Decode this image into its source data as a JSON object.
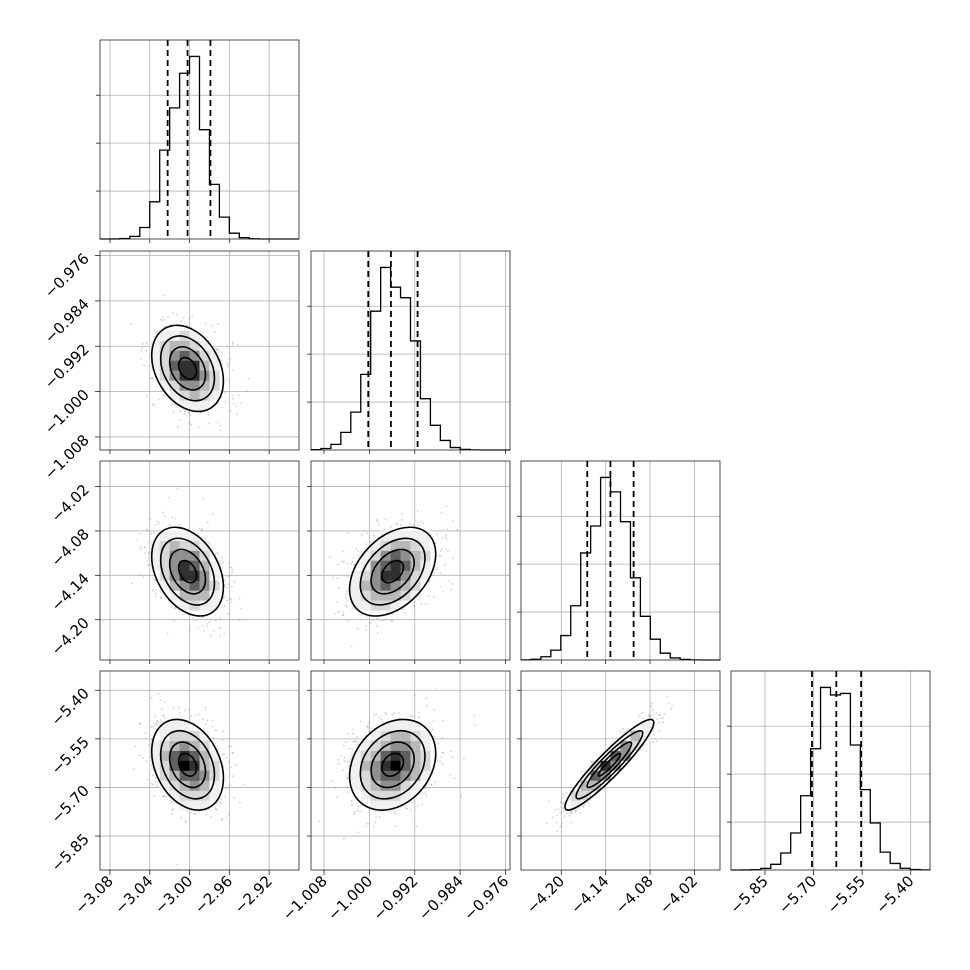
{
  "chart_data": {
    "type": "corner",
    "grid": true,
    "parameters": [
      {
        "index": 0,
        "range": [
          -3.09,
          -2.89
        ],
        "ticks": [
          "−3.08",
          "−3.04",
          "−3.00",
          "−2.96",
          "−2.92"
        ],
        "tick_values": [
          -3.08,
          -3.04,
          -3.0,
          -2.96,
          -2.92
        ],
        "mean": -3.002,
        "std": 0.018,
        "quantiles": [
          -3.022,
          -3.002,
          -2.979
        ]
      },
      {
        "index": 1,
        "range": [
          -1.0103,
          -0.9752
        ],
        "ticks": [
          "−1.008",
          "−1.000",
          "−0.992",
          "−0.984",
          "−0.976"
        ],
        "tick_values": [
          -1.008,
          -1.0,
          -0.992,
          -0.984,
          -0.976
        ],
        "mean": -0.9959,
        "std": 0.0038,
        "quantiles": [
          -1.0002,
          -0.9962,
          -0.9915
        ]
      },
      {
        "index": 2,
        "range": [
          -4.2545,
          -3.9854
        ],
        "ticks": [
          "−4.20",
          "−4.14",
          "−4.08",
          "−4.02"
        ],
        "tick_values": [
          -4.2,
          -4.14,
          -4.08,
          -4.02
        ],
        "mean": -4.135,
        "std": 0.03,
        "quantiles": [
          -4.1649,
          -4.1336,
          -4.1022
        ]
      },
      {
        "index": 3,
        "range": [
          -5.9548,
          -5.3405
        ],
        "ticks": [
          "−5.85",
          "−5.70",
          "−5.55",
          "−5.40"
        ],
        "tick_values": [
          -5.85,
          -5.7,
          -5.55,
          -5.4
        ],
        "mean": -5.63,
        "std": 0.07,
        "quantiles": [
          -5.7048,
          -5.6297,
          -5.5531
        ]
      }
    ],
    "correlations": [
      {
        "pair": [
          1,
          0
        ],
        "rho": -0.3
      },
      {
        "pair": [
          2,
          0
        ],
        "rho": -0.35
      },
      {
        "pair": [
          2,
          1
        ],
        "rho": 0.4
      },
      {
        "pair": [
          3,
          0
        ],
        "rho": -0.3
      },
      {
        "pair": [
          3,
          1
        ],
        "rho": 0.25
      },
      {
        "pair": [
          3,
          2
        ],
        "rho": 0.93
      }
    ],
    "histogram_bins": 20,
    "contour_levels_sigma": [
      0.5,
      1.0,
      1.5,
      2.0
    ],
    "colors": {
      "points": "#7f7f7f",
      "density": "#000000",
      "lines": "#000000",
      "grid": "#b0b0b0"
    }
  }
}
